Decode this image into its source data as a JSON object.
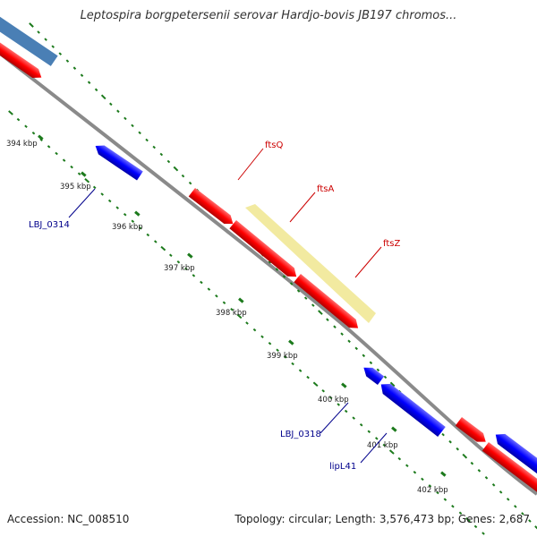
{
  "title": "Leptospira borgpetersenii serovar Hardjo-bovis JB197 chromos...",
  "footer": {
    "accession": "Accession: NC_008510",
    "topology": "Topology: circular; Length: 3,576,473 bp; Genes: 2,687"
  },
  "colors": {
    "forward_gene": "#ff0000",
    "reverse_gene": "#0000ff",
    "rrna_gene": "#4a7fb5",
    "highlight": "#f2eaa0",
    "backbone": "#8a8a8a",
    "tick": "#1c7a1c",
    "forward_label": "#cc0000",
    "reverse_label": "#00008b"
  },
  "kbp_labels": [
    "394 kbp",
    "395 kbp",
    "396 kbp",
    "397 kbp",
    "398 kbp",
    "399 kbp",
    "400 kbp",
    "401 kbp",
    "402 kbp"
  ],
  "gene_labels": {
    "ftsQ": "ftsQ",
    "ftsA": "ftsA",
    "ftsZ": "ftsZ",
    "LBJ_0314": "LBJ_0314",
    "LBJ_0318": "LBJ_0318",
    "lipL41": "lipL41"
  }
}
